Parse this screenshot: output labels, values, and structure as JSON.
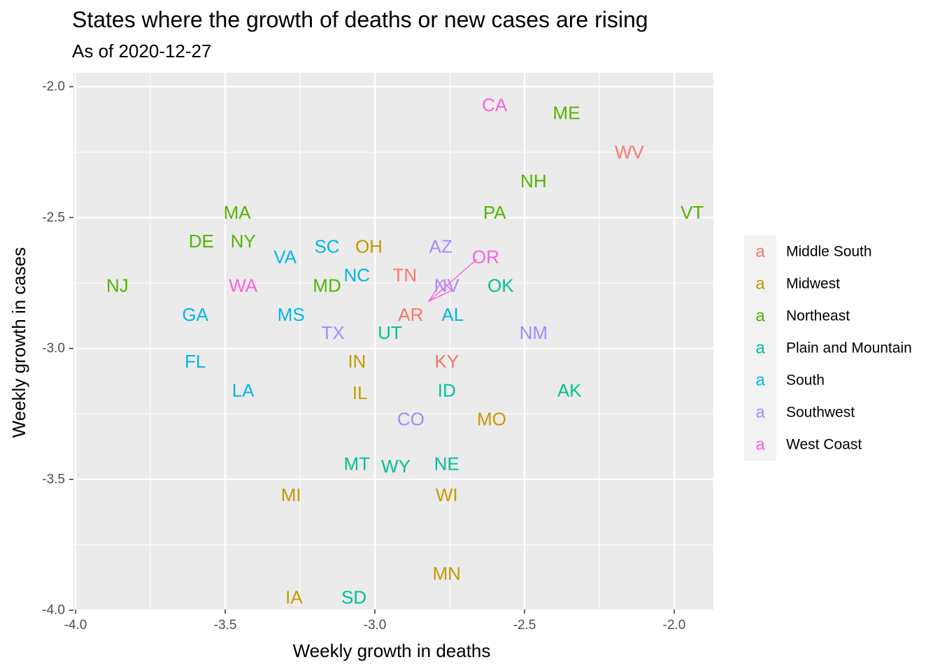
{
  "chart_data": {
    "type": "scatter",
    "title": "States where the growth of deaths or new cases are rising",
    "subtitle": "As of 2020-12-27",
    "xlabel": "Weekly growth in deaths",
    "ylabel": "Weekly growth in cases",
    "xlim": [
      -4.0,
      -1.87
    ],
    "ylim": [
      -4.0,
      -1.95
    ],
    "x_ticks": [
      -4.0,
      -3.5,
      -3.0,
      -2.5,
      -2.0
    ],
    "x_tick_labels": [
      "-4.0",
      "-3.5",
      "-3.0",
      "-2.5",
      "-2.0"
    ],
    "y_ticks": [
      -4.0,
      -3.5,
      -3.0,
      -2.5,
      -2.0
    ],
    "y_tick_labels": [
      "-4.0",
      "-3.5",
      "-3.0",
      "-2.5",
      "-2.0"
    ],
    "grid": true,
    "legend_position": "right",
    "legend_key_glyph": "a",
    "legend": [
      {
        "name": "Middle South",
        "color": "#F8766D"
      },
      {
        "name": "Midwest",
        "color": "#C49A00"
      },
      {
        "name": "Northeast",
        "color": "#53B400"
      },
      {
        "name": "Plain and Mountain",
        "color": "#00C094"
      },
      {
        "name": "South",
        "color": "#00B6EB"
      },
      {
        "name": "Southwest",
        "color": "#A58AFF"
      },
      {
        "name": "West Coast",
        "color": "#FB61D7"
      }
    ],
    "points": [
      {
        "label": "CA",
        "x": -2.6,
        "y": -2.07,
        "region": "West Coast"
      },
      {
        "label": "ME",
        "x": -2.36,
        "y": -2.1,
        "region": "Northeast"
      },
      {
        "label": "WV",
        "x": -2.15,
        "y": -2.25,
        "region": "Middle South"
      },
      {
        "label": "NH",
        "x": -2.47,
        "y": -2.36,
        "region": "Northeast"
      },
      {
        "label": "MA",
        "x": -3.46,
        "y": -2.48,
        "region": "Northeast"
      },
      {
        "label": "PA",
        "x": -2.6,
        "y": -2.48,
        "region": "Northeast"
      },
      {
        "label": "VT",
        "x": -1.94,
        "y": -2.48,
        "region": "Northeast"
      },
      {
        "label": "DE",
        "x": -3.58,
        "y": -2.59,
        "region": "Northeast"
      },
      {
        "label": "NY",
        "x": -3.44,
        "y": -2.59,
        "region": "Northeast"
      },
      {
        "label": "SC",
        "x": -3.16,
        "y": -2.61,
        "region": "South"
      },
      {
        "label": "OH",
        "x": -3.02,
        "y": -2.61,
        "region": "Midwest"
      },
      {
        "label": "AZ",
        "x": -2.78,
        "y": -2.61,
        "region": "Southwest"
      },
      {
        "label": "VA",
        "x": -3.3,
        "y": -2.65,
        "region": "South"
      },
      {
        "label": "OR",
        "x": -2.63,
        "y": -2.65,
        "region": "West Coast"
      },
      {
        "label": "NC",
        "x": -3.06,
        "y": -2.72,
        "region": "South"
      },
      {
        "label": "TN",
        "x": -2.9,
        "y": -2.72,
        "region": "Middle South"
      },
      {
        "label": "NJ",
        "x": -3.86,
        "y": -2.76,
        "region": "Northeast"
      },
      {
        "label": "WA",
        "x": -3.44,
        "y": -2.76,
        "region": "West Coast"
      },
      {
        "label": "MD",
        "x": -3.16,
        "y": -2.76,
        "region": "Northeast"
      },
      {
        "label": "NV",
        "x": -2.76,
        "y": -2.76,
        "region": "Southwest"
      },
      {
        "label": "OK",
        "x": -2.58,
        "y": -2.76,
        "region": "Plain and Mountain"
      },
      {
        "label": "GA",
        "x": -3.6,
        "y": -2.87,
        "region": "South"
      },
      {
        "label": "MS",
        "x": -3.28,
        "y": -2.87,
        "region": "South"
      },
      {
        "label": "AR",
        "x": -2.88,
        "y": -2.87,
        "region": "Middle South"
      },
      {
        "label": "AL",
        "x": -2.74,
        "y": -2.87,
        "region": "South"
      },
      {
        "label": "TX",
        "x": -3.14,
        "y": -2.94,
        "region": "Southwest"
      },
      {
        "label": "UT",
        "x": -2.95,
        "y": -2.94,
        "region": "Plain and Mountain"
      },
      {
        "label": "NM",
        "x": -2.47,
        "y": -2.94,
        "region": "Southwest"
      },
      {
        "label": "FL",
        "x": -3.6,
        "y": -3.05,
        "region": "South"
      },
      {
        "label": "IN",
        "x": -3.06,
        "y": -3.05,
        "region": "Midwest"
      },
      {
        "label": "KY",
        "x": -2.76,
        "y": -3.05,
        "region": "Middle South"
      },
      {
        "label": "LA",
        "x": -3.44,
        "y": -3.16,
        "region": "South"
      },
      {
        "label": "IL",
        "x": -3.05,
        "y": -3.17,
        "region": "Midwest"
      },
      {
        "label": "ID",
        "x": -2.76,
        "y": -3.16,
        "region": "Plain and Mountain"
      },
      {
        "label": "AK",
        "x": -2.35,
        "y": -3.16,
        "region": "Plain and Mountain"
      },
      {
        "label": "CO",
        "x": -2.88,
        "y": -3.27,
        "region": "Southwest"
      },
      {
        "label": "MO",
        "x": -2.61,
        "y": -3.27,
        "region": "Midwest"
      },
      {
        "label": "MT",
        "x": -3.06,
        "y": -3.44,
        "region": "Plain and Mountain"
      },
      {
        "label": "WY",
        "x": -2.93,
        "y": -3.45,
        "region": "Plain and Mountain"
      },
      {
        "label": "NE",
        "x": -2.76,
        "y": -3.44,
        "region": "Plain and Mountain"
      },
      {
        "label": "MI",
        "x": -3.28,
        "y": -3.56,
        "region": "Midwest"
      },
      {
        "label": "WI",
        "x": -2.76,
        "y": -3.56,
        "region": "Midwest"
      },
      {
        "label": "MN",
        "x": -2.76,
        "y": -3.86,
        "region": "Midwest"
      },
      {
        "label": "IA",
        "x": -3.27,
        "y": -3.95,
        "region": "Midwest"
      },
      {
        "label": "SD",
        "x": -3.07,
        "y": -3.95,
        "region": "Plain and Mountain"
      }
    ],
    "segments": [
      {
        "label": "OR",
        "region": "West Coast",
        "x_from": -2.66,
        "y_from": -2.66,
        "x_to": -2.82,
        "y_to": -2.82
      }
    ]
  }
}
